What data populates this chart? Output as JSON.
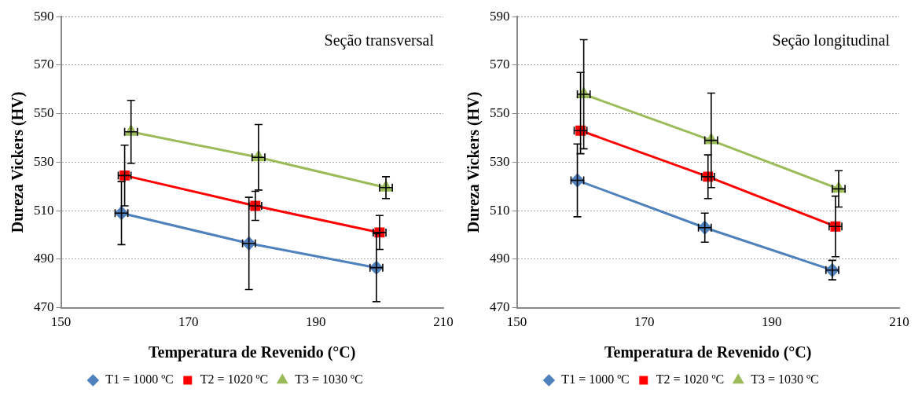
{
  "chart_data": [
    {
      "type": "line",
      "xlabel": "Temperatura de Revenido (°C)",
      "ylabel": "Dureza Vickers (HV)",
      "annotations": [
        "Seção transversal"
      ],
      "xlim": [
        150,
        210
      ],
      "xticks": [
        150,
        170,
        190,
        210
      ],
      "ylim": [
        470,
        590
      ],
      "yticks": [
        470,
        490,
        510,
        530,
        550,
        570,
        590
      ],
      "grid": "y",
      "legend": "bottom",
      "series": [
        {
          "name": "T1 = 1000 ºC",
          "color": "#4f81bd",
          "marker": "diamond",
          "x": [
            159.5,
            179.5,
            199.5
          ],
          "values": [
            509,
            496.5,
            486.5
          ],
          "errors": [
            13,
            19,
            14
          ],
          "xerrors": [
            1,
            1,
            1
          ]
        },
        {
          "name": "T2 = 1020 ºC",
          "color": "#ff0000",
          "marker": "square",
          "x": [
            160,
            180.5,
            200
          ],
          "values": [
            524.5,
            512,
            501
          ],
          "errors": [
            12.5,
            6,
            7
          ],
          "xerrors": [
            1,
            1,
            1
          ]
        },
        {
          "name": "T3 = 1030 ºC",
          "color": "#9bbb59",
          "marker": "triangle",
          "x": [
            161,
            181,
            201
          ],
          "values": [
            542.5,
            532,
            519.5
          ],
          "errors": [
            13,
            13.5,
            4.5
          ],
          "xerrors": [
            1,
            1,
            1
          ]
        }
      ]
    },
    {
      "type": "line",
      "xlabel": "Temperatura de Revenido (°C)",
      "ylabel": "Dureza Vickers (HV)",
      "annotations": [
        "Seção longitudinal"
      ],
      "xlim": [
        150,
        210
      ],
      "xticks": [
        150,
        170,
        190,
        210
      ],
      "ylim": [
        470,
        590
      ],
      "yticks": [
        470,
        490,
        510,
        530,
        550,
        570,
        590
      ],
      "grid": "y",
      "legend": "bottom",
      "series": [
        {
          "name": "T1 = 1000 ºC",
          "color": "#4f81bd",
          "marker": "diamond",
          "x": [
            159.5,
            179.5,
            199.5
          ],
          "values": [
            522.5,
            503,
            485.5
          ],
          "errors": [
            15,
            6,
            4
          ],
          "xerrors": [
            1,
            1,
            1
          ]
        },
        {
          "name": "T2 = 1020 ºC",
          "color": "#ff0000",
          "marker": "square",
          "x": [
            160,
            180,
            200
          ],
          "values": [
            543,
            524,
            503.5
          ],
          "errors": [
            [
              533.5,
              567
            ],
            9,
            12.5
          ],
          "xerrors": [
            1,
            1,
            1
          ]
        },
        {
          "name": "T3 = 1030 ºC",
          "color": "#9bbb59",
          "marker": "triangle",
          "x": [
            160.5,
            180.5,
            200.5
          ],
          "values": [
            558,
            539,
            519
          ],
          "errors": [
            22.5,
            19.5,
            7.5
          ],
          "xerrors": [
            1,
            1,
            1
          ]
        }
      ]
    }
  ]
}
